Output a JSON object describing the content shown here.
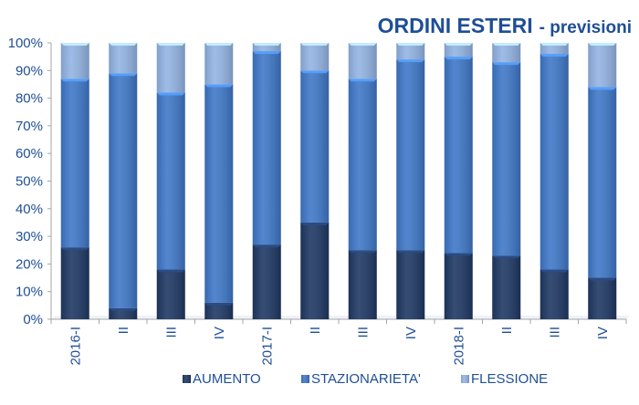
{
  "chart_data": {
    "type": "bar",
    "stacked": true,
    "percent": true,
    "title": "ORDINI ESTERI",
    "subtitle": "- previsioni",
    "categories": [
      "2016-I",
      "II",
      "III",
      "IV",
      "2017-I",
      "II",
      "III",
      "IV",
      "2018-I",
      "II",
      "III",
      "IV"
    ],
    "y_ticks": [
      "0%",
      "10%",
      "20%",
      "30%",
      "40%",
      "50%",
      "60%",
      "70%",
      "80%",
      "90%",
      "100%"
    ],
    "ylim": [
      0,
      100
    ],
    "series": [
      {
        "name": "AUMENTO",
        "color": "#1f3864",
        "values": [
          26,
          4,
          18,
          6,
          27,
          35,
          25,
          25,
          24,
          23,
          18,
          15
        ]
      },
      {
        "name": "STAZIONARIETA'",
        "color": "#3f78c8",
        "values": [
          61,
          85,
          64,
          79,
          70,
          55,
          62,
          69,
          71,
          70,
          78,
          69
        ]
      },
      {
        "name": "FLESSIONE",
        "color": "#93b4e4",
        "values": [
          13,
          11,
          18,
          15,
          3,
          10,
          13,
          6,
          5,
          7,
          4,
          16
        ]
      }
    ],
    "legend_position": "bottom",
    "grid": false
  }
}
